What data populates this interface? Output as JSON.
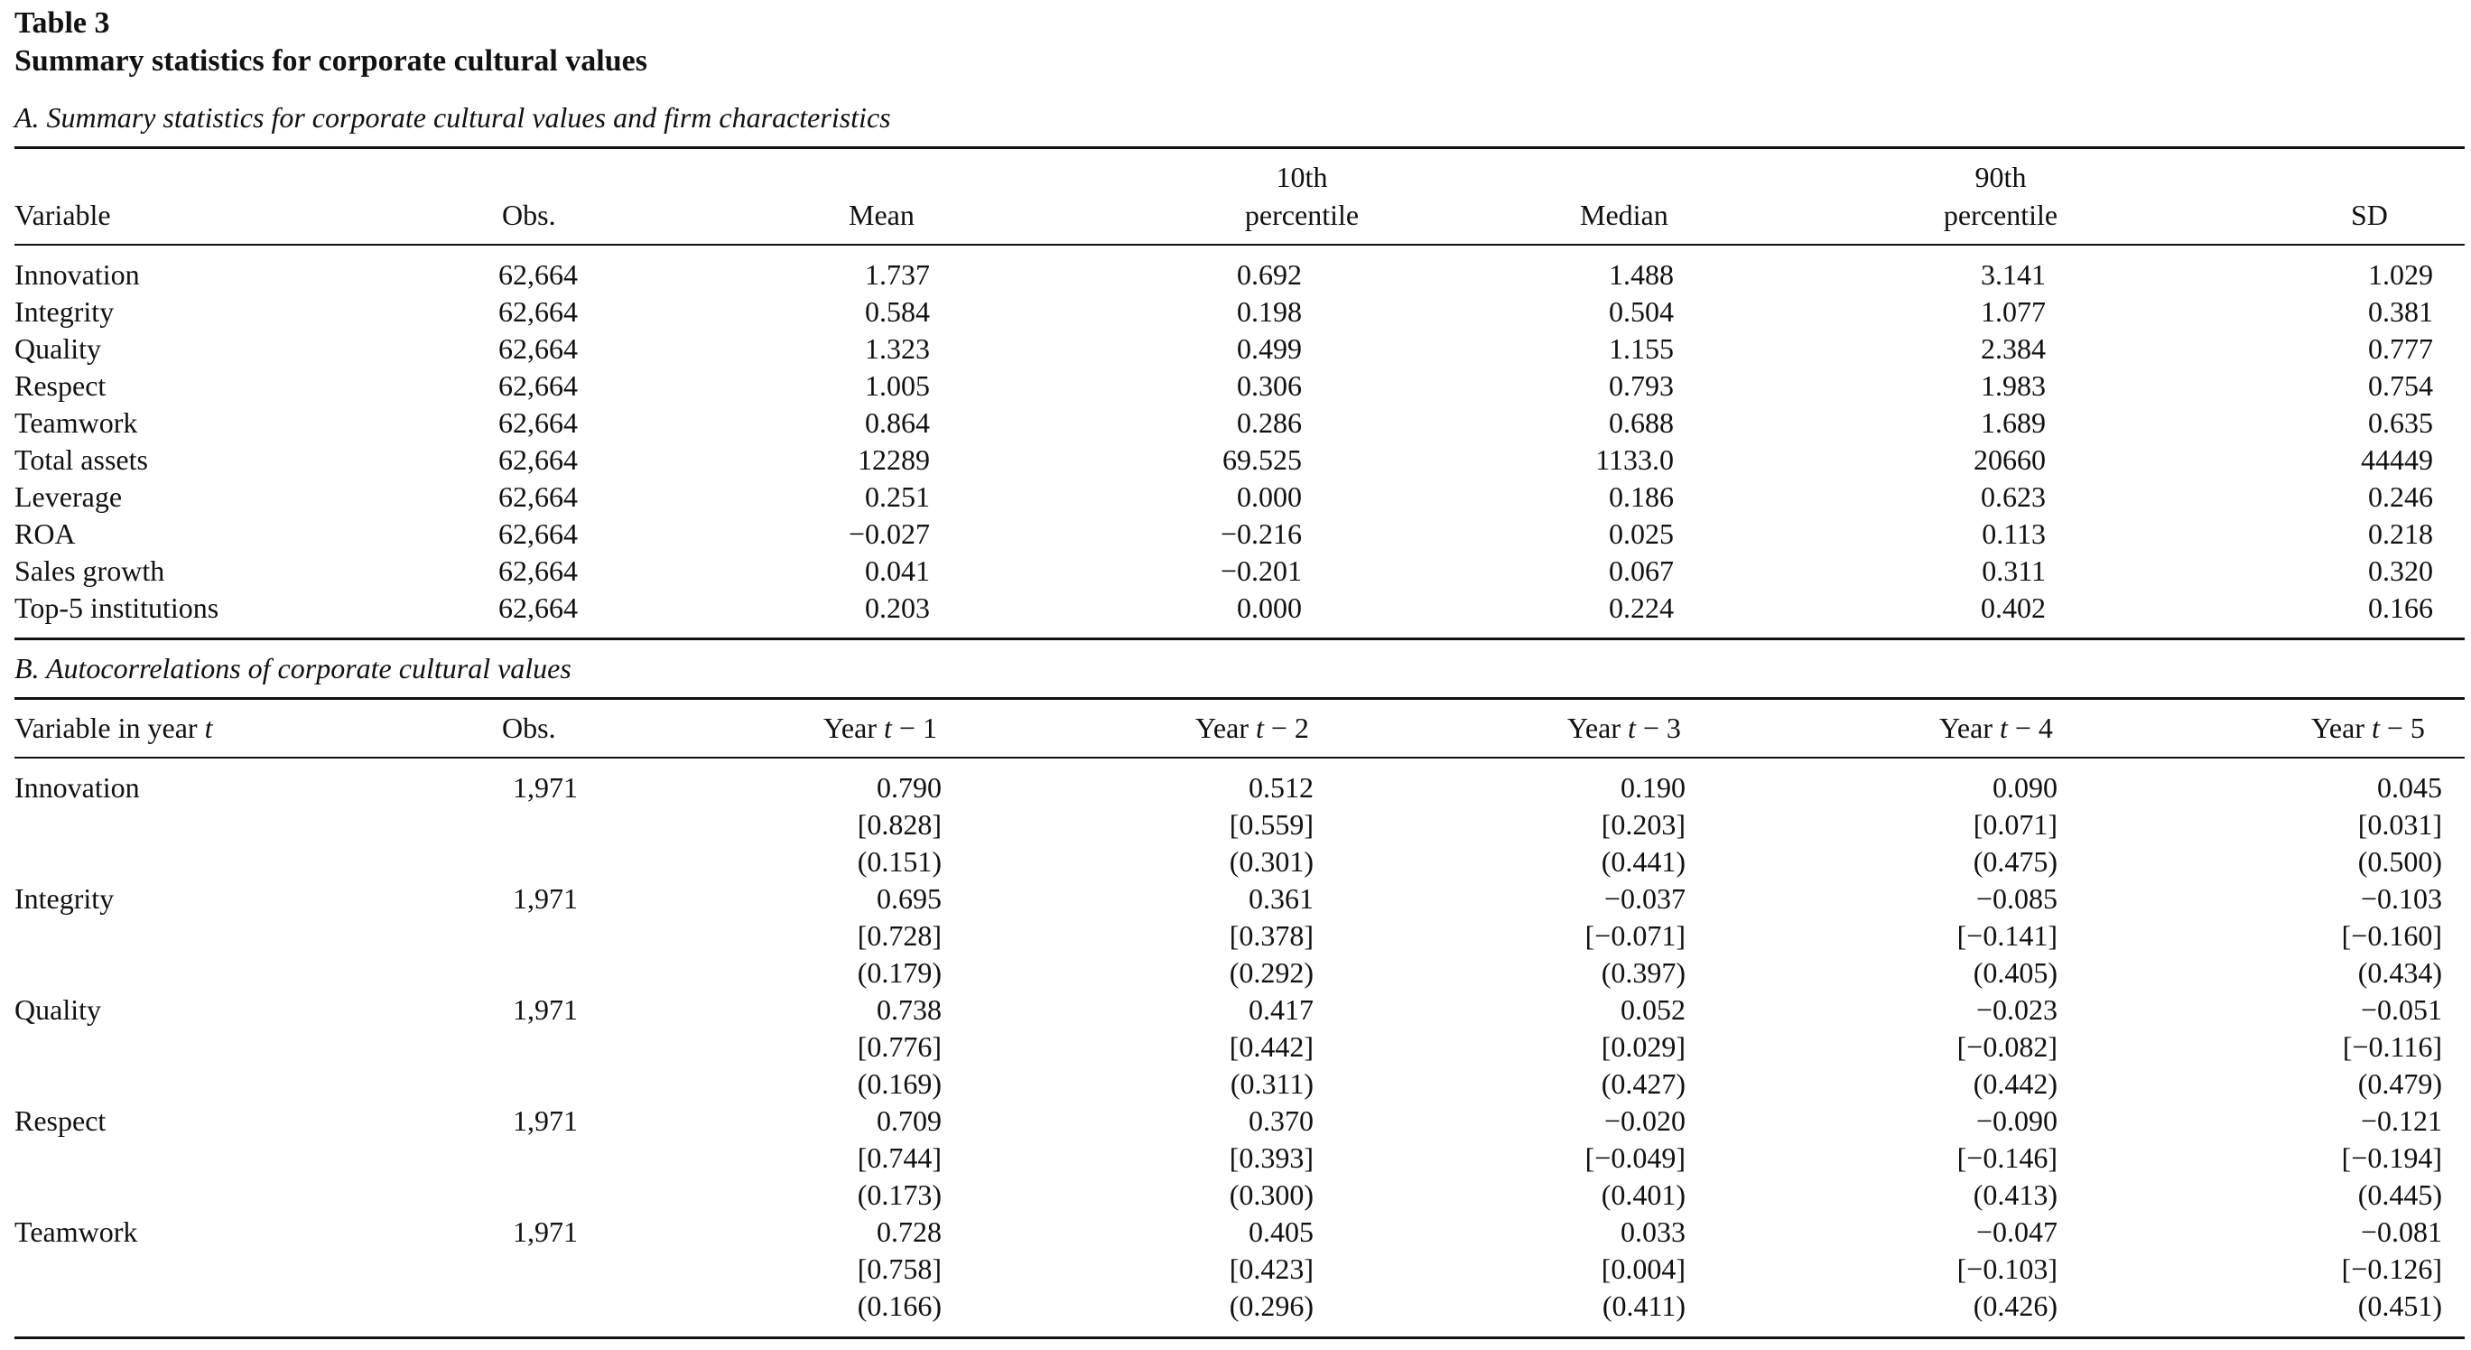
{
  "table": {
    "number": "Table 3",
    "caption": "Summary statistics for corporate cultural values"
  },
  "panel_a": {
    "title": "A. Summary statistics for corporate cultural values and firm characteristics",
    "headers": {
      "variable": "Variable",
      "obs": "Obs.",
      "mean": "Mean",
      "p10_line1": "10th",
      "p10_line2": "percentile",
      "median": "Median",
      "p90_line1": "90th",
      "p90_line2": "percentile",
      "sd": "SD"
    },
    "rows": [
      [
        "Innovation",
        "62,664",
        "1.737",
        "0.692",
        "1.488",
        "3.141",
        "1.029"
      ],
      [
        "Integrity",
        "62,664",
        "0.584",
        "0.198",
        "0.504",
        "1.077",
        "0.381"
      ],
      [
        "Quality",
        "62,664",
        "1.323",
        "0.499",
        "1.155",
        "2.384",
        "0.777"
      ],
      [
        "Respect",
        "62,664",
        "1.005",
        "0.306",
        "0.793",
        "1.983",
        "0.754"
      ],
      [
        "Teamwork",
        "62,664",
        "0.864",
        "0.286",
        "0.688",
        "1.689",
        "0.635"
      ],
      [
        "Total assets",
        "62,664",
        "12289",
        "69.525",
        "1133.0",
        "20660",
        "44449"
      ],
      [
        "Leverage",
        "62,664",
        "0.251",
        "0.000",
        "0.186",
        "0.623",
        "0.246"
      ],
      [
        "ROA",
        "62,664",
        "−0.027",
        "−0.216",
        "0.025",
        "0.113",
        "0.218"
      ],
      [
        "Sales growth",
        "62,664",
        "0.041",
        "−0.201",
        "0.067",
        "0.311",
        "0.320"
      ],
      [
        "Top-5 institutions",
        "62,664",
        "0.203",
        "0.000",
        "0.224",
        "0.402",
        "0.166"
      ]
    ]
  },
  "panel_b": {
    "title": "B. Autocorrelations of corporate cultural values",
    "headers": {
      "variable_prefix": "Variable in year ",
      "variable_t": "t",
      "obs": "Obs.",
      "years": [
        {
          "prefix": "Year ",
          "var": "t",
          "suffix": " − 1"
        },
        {
          "prefix": "Year ",
          "var": "t",
          "suffix": " − 2"
        },
        {
          "prefix": "Year ",
          "var": "t",
          "suffix": " − 3"
        },
        {
          "prefix": "Year ",
          "var": "t",
          "suffix": " − 4"
        },
        {
          "prefix": "Year ",
          "var": "t",
          "suffix": " − 5"
        }
      ]
    },
    "groups": [
      {
        "variable": "Innovation",
        "obs": "1,971",
        "rows": [
          [
            "0.790",
            "0.512",
            "0.190",
            "0.090",
            "0.045"
          ],
          [
            "[0.828]",
            "[0.559]",
            "[0.203]",
            "[0.071]",
            "[0.031]"
          ],
          [
            "(0.151)",
            "(0.301)",
            "(0.441)",
            "(0.475)",
            "(0.500)"
          ]
        ]
      },
      {
        "variable": "Integrity",
        "obs": "1,971",
        "rows": [
          [
            "0.695",
            "0.361",
            "−0.037",
            "−0.085",
            "−0.103"
          ],
          [
            "[0.728]",
            "[0.378]",
            "[−0.071]",
            "[−0.141]",
            "[−0.160]"
          ],
          [
            "(0.179)",
            "(0.292)",
            "(0.397)",
            "(0.405)",
            "(0.434)"
          ]
        ]
      },
      {
        "variable": "Quality",
        "obs": "1,971",
        "rows": [
          [
            "0.738",
            "0.417",
            "0.052",
            "−0.023",
            "−0.051"
          ],
          [
            "[0.776]",
            "[0.442]",
            "[0.029]",
            "[−0.082]",
            "[−0.116]"
          ],
          [
            "(0.169)",
            "(0.311)",
            "(0.427)",
            "(0.442)",
            "(0.479)"
          ]
        ]
      },
      {
        "variable": "Respect",
        "obs": "1,971",
        "rows": [
          [
            "0.709",
            "0.370",
            "−0.020",
            "−0.090",
            "−0.121"
          ],
          [
            "[0.744]",
            "[0.393]",
            "[−0.049]",
            "[−0.146]",
            "[−0.194]"
          ],
          [
            "(0.173)",
            "(0.300)",
            "(0.401)",
            "(0.413)",
            "(0.445)"
          ]
        ]
      },
      {
        "variable": "Teamwork",
        "obs": "1,971",
        "rows": [
          [
            "0.728",
            "0.405",
            "0.033",
            "−0.047",
            "−0.081"
          ],
          [
            "[0.758]",
            "[0.423]",
            "[0.004]",
            "[−0.103]",
            "[−0.126]"
          ],
          [
            "(0.166)",
            "(0.296)",
            "(0.411)",
            "(0.426)",
            "(0.451)"
          ]
        ]
      }
    ]
  }
}
